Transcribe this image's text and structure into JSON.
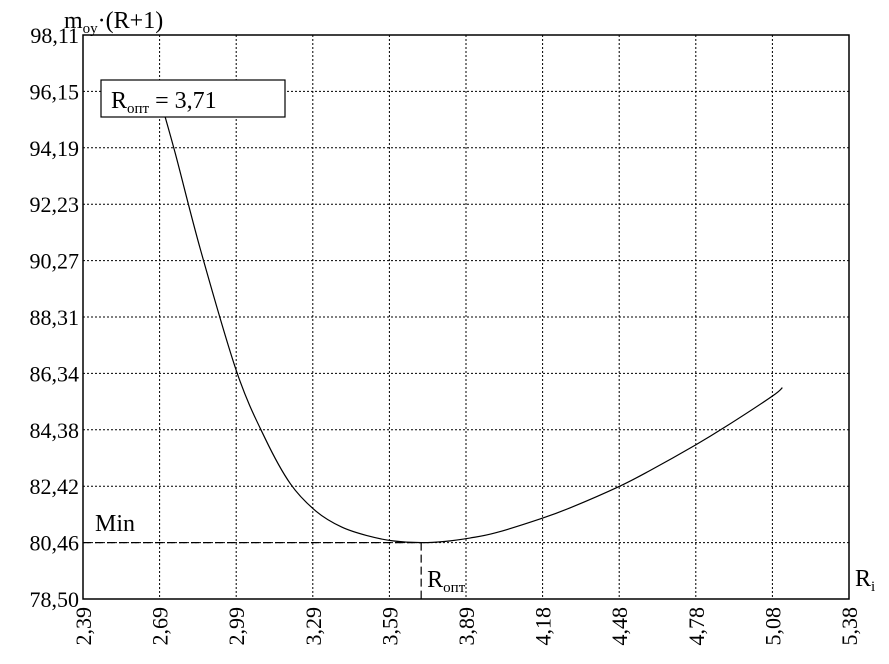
{
  "chart_data": {
    "type": "line",
    "ylabel_main": "m",
    "ylabel_sub": "oy",
    "ylabel_rest": "·(R+1)",
    "xlabel_main": "R",
    "xlabel_sub": "i",
    "xlim": [
      2.39,
      5.38
    ],
    "ylim": [
      78.5,
      98.11
    ],
    "x_ticks": [
      "2,39",
      "2,69",
      "2,99",
      "3,29",
      "3,59",
      "3,89",
      "4,18",
      "4,48",
      "4,78",
      "5,08",
      "5,38"
    ],
    "y_ticks": [
      "98,11",
      "96,15",
      "94,19",
      "92,23",
      "90,27",
      "88,31",
      "86,34",
      "84,38",
      "82,42",
      "80,46",
      "78,50"
    ],
    "grid": true,
    "series": [
      {
        "x": [
          2.69,
          2.75,
          2.85,
          2.99,
          3.1,
          3.2,
          3.3,
          3.4,
          3.5,
          3.6,
          3.71,
          3.8,
          3.9,
          4.0,
          4.18,
          4.3,
          4.48,
          4.6,
          4.78,
          4.9,
          5.08,
          5.12
        ],
        "y": [
          95.9,
          94.0,
          90.6,
          86.4,
          84.1,
          82.5,
          81.55,
          81.0,
          80.7,
          80.52,
          80.46,
          80.5,
          80.62,
          80.8,
          81.3,
          81.7,
          82.4,
          82.95,
          83.85,
          84.5,
          85.55,
          85.85
        ]
      }
    ],
    "annotations": {
      "ropt_box_main": "R",
      "ropt_box_sub": "опт",
      "ropt_box_value": " = 3,71",
      "min_label": "Min",
      "ropt_marker_main": "R",
      "ropt_marker_sub": "опт"
    },
    "min_point": {
      "x": 3.71,
      "y": 80.46
    }
  }
}
